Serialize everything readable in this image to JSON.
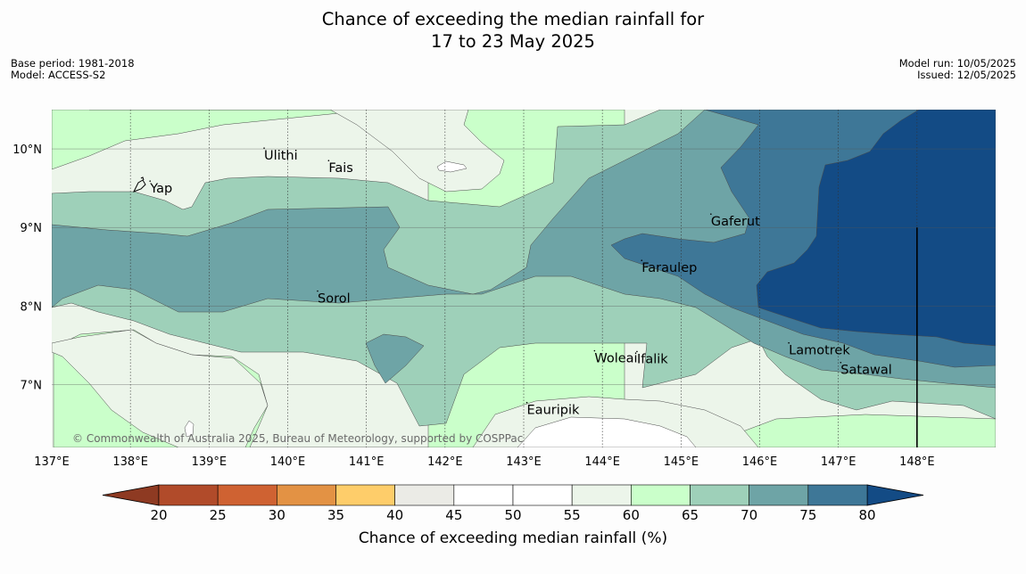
{
  "title": {
    "line1": "Chance of exceeding the median rainfall for",
    "line2": "17 to 23 May 2025"
  },
  "meta_left": {
    "base_period": "Base period: 1981-2018",
    "model": "Model: ACCESS-S2"
  },
  "meta_right": {
    "model_run": "Model run: 10/05/2025",
    "issued": "Issued: 12/05/2025"
  },
  "map": {
    "lon_range": [
      137,
      149
    ],
    "lat_range": [
      6.2,
      10.5
    ],
    "lon_labels": [
      "137°E",
      "138°E",
      "139°E",
      "140°E",
      "141°E",
      "142°E",
      "143°E",
      "144°E",
      "145°E",
      "146°E",
      "147°E",
      "148°E"
    ],
    "lat_labels": [
      "10°N",
      "9°N",
      "8°N",
      "7°N"
    ],
    "places": [
      {
        "name": "Yap",
        "lon": 138.25,
        "lat": 9.5
      },
      {
        "name": "Ulithi",
        "lon": 139.7,
        "lat": 9.92
      },
      {
        "name": "Fais",
        "lon": 140.52,
        "lat": 9.76
      },
      {
        "name": "Gaferut",
        "lon": 145.38,
        "lat": 9.08
      },
      {
        "name": "Faraulep",
        "lon": 144.5,
        "lat": 8.49
      },
      {
        "name": "Sorol",
        "lon": 140.38,
        "lat": 8.1
      },
      {
        "name": "Woleai",
        "lon": 143.9,
        "lat": 7.34
      },
      {
        "name": "Ifalik",
        "lon": 144.44,
        "lat": 7.33
      },
      {
        "name": "Lamotrek",
        "lon": 146.37,
        "lat": 7.44
      },
      {
        "name": "Satawal",
        "lon": 147.03,
        "lat": 7.19
      },
      {
        "name": "Eauripik",
        "lon": 143.04,
        "lat": 6.68
      }
    ],
    "copyright": "© Commonwealth of Australia 2025, Bureau of Meteorology, supported by COSPPac",
    "meridian_line": {
      "lon": 148,
      "lat_top": 9.0,
      "lat_bottom": 6.2
    }
  },
  "colorbar": {
    "label": "Chance of exceeding median rainfall (%)",
    "ticks": [
      "20",
      "25",
      "30",
      "35",
      "40",
      "45",
      "50",
      "55",
      "60",
      "65",
      "70",
      "75",
      "80"
    ],
    "under_color": "#8e3a22",
    "over_color": "#134b85",
    "colors": [
      "#b14b2a",
      "#cf6232",
      "#e39244",
      "#fecd6a",
      "#ebebe6",
      "#ffffff",
      "#ffffff",
      "#ecf5ea",
      "#caffca",
      "#9ed0b9",
      "#6ea4a6",
      "#3e7797"
    ]
  },
  "contour_colors": {
    "c55": "#ecf5ea",
    "c60": "#caffca",
    "c65": "#9ed0b9",
    "c70": "#6ea4a6",
    "c75": "#3e7797",
    "c80": "#134b85",
    "c50": "#ffffff"
  }
}
